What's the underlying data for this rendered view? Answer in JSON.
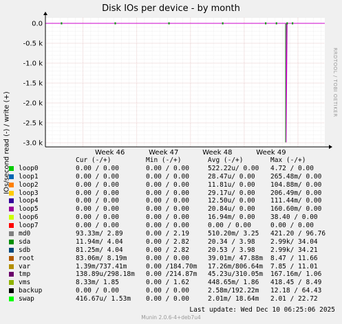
{
  "title": "Disk IOs per device - by month",
  "side_label": "RRDTOOL / TOBI OETIKER",
  "footer": "Munin 2.0.6-4+deb7u4",
  "last_update": "Last update:  Wed Dec 10 06:25:06 2025",
  "colors": {
    "plot_bg": "#ffffff",
    "page_bg": "#f0f0f0",
    "grid_major": "#e0b8b8",
    "grid_minor": "#e8e8e8",
    "axis": "#000000",
    "line_green": "#00cc00",
    "spike_magenta": "#cc00cc"
  },
  "legend_header": {
    "cur": "Cur (-/+)",
    "min": "Min (-/+)",
    "avg": "Avg (-/+)",
    "max": "Max (-/+)"
  },
  "legend": [
    {
      "name": "loop0",
      "color": "#00cc00",
      "cur": "0.00 /  0.00",
      "min": "0.00 /  0.00",
      "avg": "522.22u/  0.00",
      "max": "4.72 /  0.00"
    },
    {
      "name": "loop1",
      "color": "#0066b3",
      "cur": "0.00 /  0.00",
      "min": "0.00 /  0.00",
      "avg": "28.47u/  0.00",
      "max": "265.48m/  0.00"
    },
    {
      "name": "loop2",
      "color": "#ff8000",
      "cur": "0.00 /  0.00",
      "min": "0.00 /  0.00",
      "avg": "11.81u/  0.00",
      "max": "104.88m/  0.00"
    },
    {
      "name": "loop3",
      "color": "#ffcc00",
      "cur": "0.00 /  0.00",
      "min": "0.00 /  0.00",
      "avg": "29.17u/  0.00",
      "max": "206.49m/  0.00"
    },
    {
      "name": "loop4",
      "color": "#330099",
      "cur": "0.00 /  0.00",
      "min": "0.00 /  0.00",
      "avg": "12.50u/  0.00",
      "max": "111.44m/  0.00"
    },
    {
      "name": "loop5",
      "color": "#990099",
      "cur": "0.00 /  0.00",
      "min": "0.00 /  0.00",
      "avg": "20.84u/  0.00",
      "max": "160.60m/  0.00"
    },
    {
      "name": "loop6",
      "color": "#ccff00",
      "cur": "0.00 /  0.00",
      "min": "0.00 /  0.00",
      "avg": "16.94m/  0.00",
      "max": "38.40 /  0.00"
    },
    {
      "name": "loop7",
      "color": "#ff0000",
      "cur": "0.00 /  0.00",
      "min": "0.00 /  0.00",
      "avg": "0.00 /  0.00",
      "max": "0.00 /  0.00"
    },
    {
      "name": "md0",
      "color": "#808080",
      "cur": "93.33m/  2.89",
      "min": "0.00 /  2.19",
      "avg": "510.20m/  3.25",
      "max": "421.20 / 96.76"
    },
    {
      "name": "sda",
      "color": "#008f00",
      "cur": "11.94m/  4.04",
      "min": "0.00 /  2.82",
      "avg": "20.34 /  3.98",
      "max": "2.99k/ 34.04"
    },
    {
      "name": "sdb",
      "color": "#00487d",
      "cur": "81.25m/  4.04",
      "min": "0.00 /  2.82",
      "avg": "20.53 /  3.98",
      "max": "2.99k/ 34.21"
    },
    {
      "name": "root",
      "color": "#b35a00",
      "cur": "83.06m/  8.19m",
      "min": "0.00 /  0.00",
      "avg": "39.01m/ 47.88m",
      "max": "8.47 / 11.66"
    },
    {
      "name": "var",
      "color": "#b38f00",
      "cur": "1.39m/737.41m",
      "min": "0.00 /184.70m",
      "avg": "17.26m/806.64m",
      "max": "7.85 / 11.01"
    },
    {
      "name": "tmp",
      "color": "#6b006b",
      "cur": "138.89u/298.18m",
      "min": "0.00 /214.87m",
      "avg": "45.23u/310.05m",
      "max": "167.16m/  1.06"
    },
    {
      "name": "vms",
      "color": "#8fb300",
      "cur": "8.33m/  1.85",
      "min": "0.00 /  1.62",
      "avg": "448.65m/  1.86",
      "max": "418.45 /  8.49"
    },
    {
      "name": "backup",
      "color": "#000000",
      "cur": "0.00 /  0.00",
      "min": "0.00 /  0.00",
      "avg": "2.58m/192.22m",
      "max": "12.18 / 64.43"
    },
    {
      "name": "swap",
      "color": "#00ff00",
      "cur": "416.67u/  1.53m",
      "min": "0.00 /  0.00",
      "avg": "2.01m/ 18.64m",
      "max": "2.01 / 22.72"
    }
  ],
  "chart_data": {
    "type": "line",
    "title": "Disk IOs per device - by month",
    "ylabel": "IOs/second read (-) / write (+)",
    "xlabel": "",
    "x_ticks": [
      "Week 46",
      "Week 47",
      "Week 48",
      "Week 49"
    ],
    "y_ticks": [
      "0.0",
      "-0.5 k",
      "-1.0 k",
      "-1.5 k",
      "-2.0 k",
      "-2.5 k",
      "-3.0 k"
    ],
    "ylim": [
      -3000,
      100
    ],
    "y_tick_values": [
      0,
      -500,
      -1000,
      -1500,
      -2000,
      -2500,
      -3000
    ],
    "x_range_weeks": [
      45.3,
      50.5
    ],
    "grid": true,
    "series": [
      {
        "name": "sda",
        "color": "#00cc00",
        "points": [
          [
            45.3,
            0
          ],
          [
            49.77,
            0
          ],
          [
            49.77,
            -2990
          ],
          [
            49.79,
            0
          ],
          [
            50.5,
            0
          ]
        ]
      },
      {
        "name": "sdb",
        "color": "#cc00cc",
        "points": [
          [
            45.3,
            0
          ],
          [
            49.78,
            0
          ],
          [
            49.78,
            -2990
          ],
          [
            49.8,
            0
          ],
          [
            50.5,
            0
          ]
        ]
      }
    ],
    "markers_weeks": [
      45.6,
      46.6,
      47.6,
      48.6,
      49.4,
      49.6,
      49.8,
      49.9
    ]
  }
}
